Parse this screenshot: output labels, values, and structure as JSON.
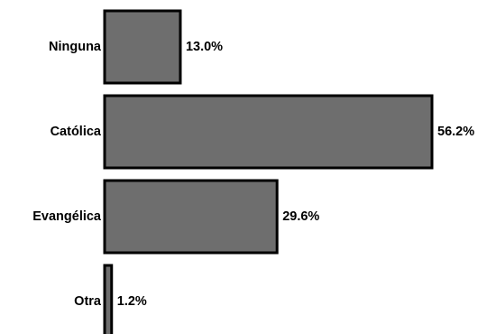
{
  "chart_data": {
    "type": "bar",
    "orientation": "horizontal",
    "categories": [
      "Ninguna",
      "Católica",
      "Evangélica",
      "Otra"
    ],
    "values": [
      13.0,
      56.2,
      29.6,
      1.2
    ],
    "value_labels": [
      "13.0%",
      "56.2%",
      "29.6%",
      "1.2%"
    ],
    "title": "",
    "xlabel": "",
    "ylabel": "",
    "xlim": [
      0,
      56.2
    ],
    "grid": false,
    "legend": "none",
    "colors": {
      "bar_fill": "#6e6e6e",
      "bar_stroke": "#000000"
    }
  }
}
